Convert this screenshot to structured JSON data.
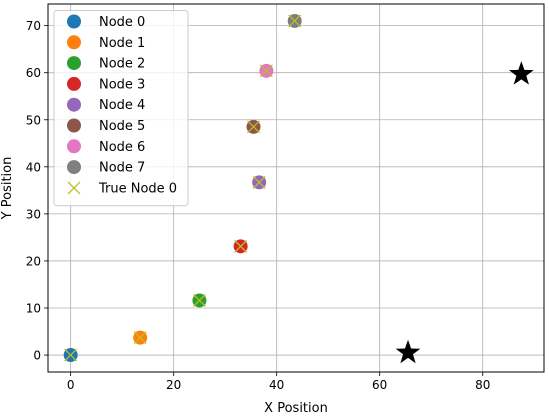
{
  "chart_data": {
    "type": "scatter",
    "title": "",
    "xlabel": "X Position",
    "ylabel": "Y Position",
    "xlim": [
      -4.4,
      91.9
    ],
    "ylim": [
      -3.6,
      74.6
    ],
    "xticks": [
      0,
      20,
      40,
      60,
      80
    ],
    "yticks": [
      0,
      10,
      20,
      30,
      40,
      50,
      60,
      70
    ],
    "grid": true,
    "legend_position": "top-left",
    "series": [
      {
        "name": "Node 0",
        "color": "#1f77b4",
        "marker": "circle",
        "x": [
          0.0
        ],
        "y": [
          0.0
        ]
      },
      {
        "name": "Node 1",
        "color": "#ff7f0e",
        "marker": "circle",
        "x": [
          13.5
        ],
        "y": [
          3.7
        ]
      },
      {
        "name": "Node 2",
        "color": "#2ca02c",
        "marker": "circle",
        "x": [
          25.0
        ],
        "y": [
          11.6
        ]
      },
      {
        "name": "Node 3",
        "color": "#d62728",
        "marker": "circle",
        "x": [
          33.0
        ],
        "y": [
          23.1
        ]
      },
      {
        "name": "Node 4",
        "color": "#9467bd",
        "marker": "circle",
        "x": [
          36.6
        ],
        "y": [
          36.7
        ]
      },
      {
        "name": "Node 5",
        "color": "#8c564b",
        "marker": "circle",
        "x": [
          35.5
        ],
        "y": [
          48.5
        ]
      },
      {
        "name": "Node 6",
        "color": "#e377c2",
        "marker": "circle",
        "x": [
          38.0
        ],
        "y": [
          60.4
        ]
      },
      {
        "name": "Node 7",
        "color": "#7f7f7f",
        "marker": "circle",
        "x": [
          43.5
        ],
        "y": [
          71.0
        ]
      },
      {
        "name": "True Node 0",
        "color": "#bcbd22",
        "marker": "x",
        "x": [
          0.0,
          13.5,
          25.0,
          33.0,
          36.6,
          35.5,
          38.0,
          43.5
        ],
        "y": [
          0.0,
          3.7,
          11.6,
          23.1,
          36.7,
          48.5,
          60.4,
          71.0
        ]
      }
    ],
    "anchors": {
      "color": "#000000",
      "marker": "star",
      "x": [
        65.5,
        87.5
      ],
      "y": [
        0.5,
        59.7
      ]
    }
  }
}
